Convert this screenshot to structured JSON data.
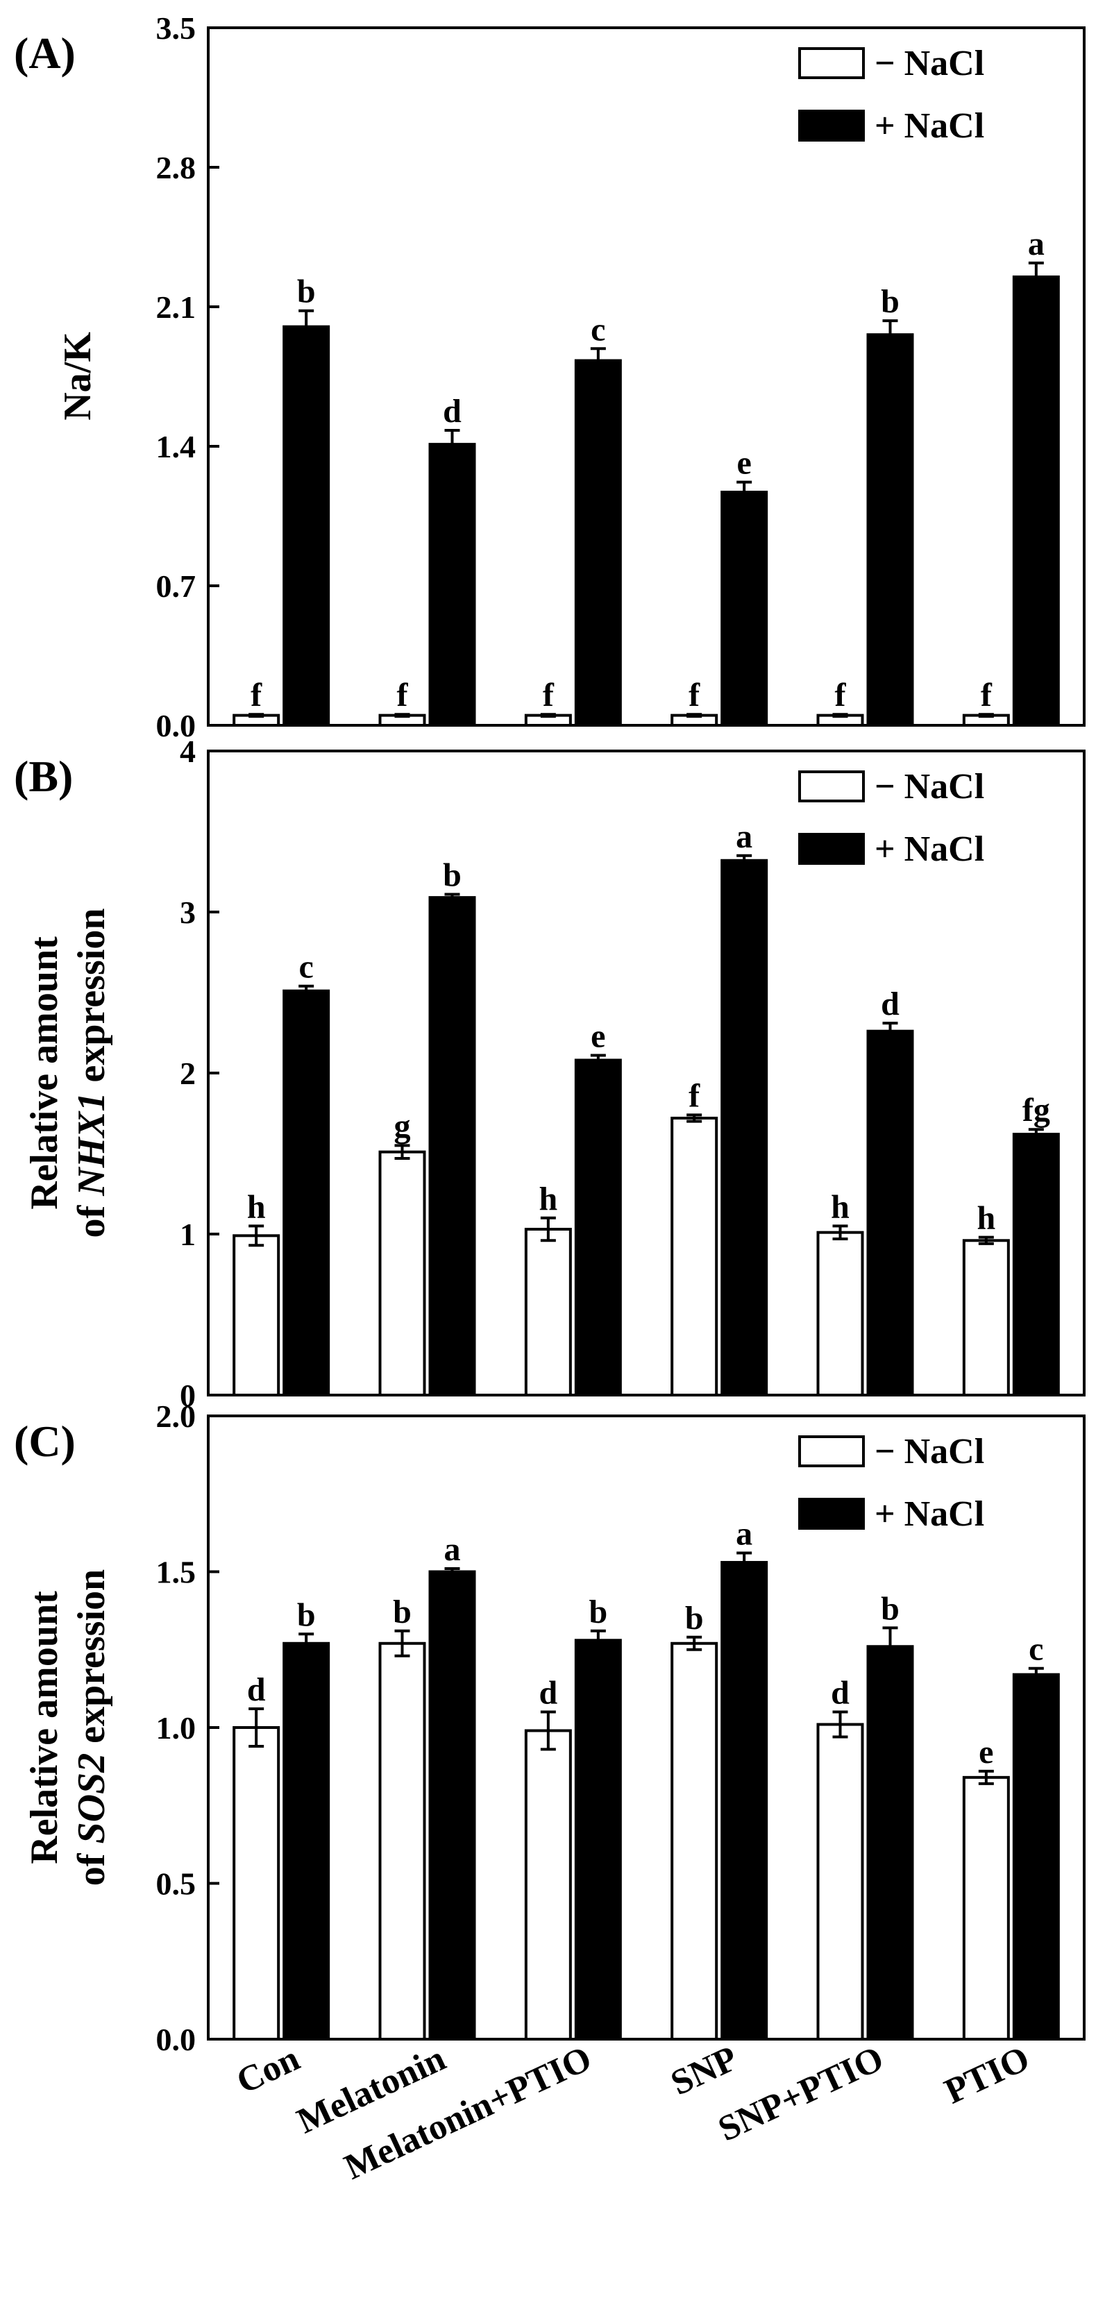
{
  "chart_data": [
    {
      "panel_label": "(A)",
      "type": "bar",
      "ylabel": "Na/K",
      "ylim": [
        0,
        3.5
      ],
      "yticks": [
        "0.0",
        "0.7",
        "1.4",
        "2.1",
        "2.8",
        "3.5"
      ],
      "categories": [
        "Con",
        "Melatonin",
        "Melatonin+PTIO",
        "SNP",
        "SNP+PTIO",
        "PTIO"
      ],
      "series": [
        {
          "name": "− NaCl",
          "values": [
            0.05,
            0.05,
            0.05,
            0.05,
            0.05,
            0.05
          ],
          "errors": [
            0.005,
            0.005,
            0.005,
            0.005,
            0.005,
            0.005
          ],
          "letters": [
            "f",
            "f",
            "f",
            "f",
            "f",
            "f"
          ]
        },
        {
          "name": "+ NaCl",
          "values": [
            2.0,
            1.41,
            1.83,
            1.17,
            1.96,
            2.25
          ],
          "errors": [
            0.08,
            0.07,
            0.06,
            0.05,
            0.07,
            0.07
          ],
          "letters": [
            "b",
            "d",
            "c",
            "e",
            "b",
            "a"
          ]
        }
      ]
    },
    {
      "panel_label": "(B)",
      "type": "bar",
      "ylabel_line1": "Relative amount",
      "ylabel_line2_prefix": "of ",
      "ylabel_gene": "NHX1",
      "ylabel_line2_suffix": " expression",
      "ylim": [
        0,
        4
      ],
      "yticks": [
        "0",
        "1",
        "2",
        "3",
        "4"
      ],
      "categories": [
        "Con",
        "Melatonin",
        "Melatonin+PTIO",
        "SNP",
        "SNP+PTIO",
        "PTIO"
      ],
      "series": [
        {
          "name": "− NaCl",
          "values": [
            0.99,
            1.51,
            1.03,
            1.72,
            1.01,
            0.96
          ],
          "errors": [
            0.06,
            0.04,
            0.07,
            0.02,
            0.04,
            0.02
          ],
          "letters": [
            "h",
            "g",
            "h",
            "f",
            "h",
            "h"
          ]
        },
        {
          "name": "+ NaCl",
          "values": [
            2.51,
            3.09,
            2.08,
            3.32,
            2.26,
            1.62
          ],
          "errors": [
            0.03,
            0.02,
            0.03,
            0.03,
            0.05,
            0.03
          ],
          "letters": [
            "c",
            "b",
            "e",
            "a",
            "d",
            "fg"
          ]
        }
      ]
    },
    {
      "panel_label": "(C)",
      "type": "bar",
      "ylabel_line1": "Relative amount",
      "ylabel_line2_prefix": "of ",
      "ylabel_gene": "SOS2",
      "ylabel_line2_suffix": " expression",
      "ylim": [
        0,
        2.0
      ],
      "yticks": [
        "0.0",
        "0.5",
        "1.0",
        "1.5",
        "2.0"
      ],
      "categories": [
        "Con",
        "Melatonin",
        "Melatonin+PTIO",
        "SNP",
        "SNP+PTIO",
        "PTIO"
      ],
      "series": [
        {
          "name": "− NaCl",
          "values": [
            1.0,
            1.27,
            0.99,
            1.27,
            1.01,
            0.84
          ],
          "errors": [
            0.06,
            0.04,
            0.06,
            0.02,
            0.04,
            0.02
          ],
          "letters": [
            "d",
            "b",
            "d",
            "b",
            "d",
            "e"
          ]
        },
        {
          "name": "+ NaCl",
          "values": [
            1.27,
            1.5,
            1.28,
            1.53,
            1.26,
            1.17
          ],
          "errors": [
            0.03,
            0.01,
            0.03,
            0.03,
            0.06,
            0.02
          ],
          "letters": [
            "b",
            "a",
            "b",
            "a",
            "b",
            "c"
          ]
        }
      ]
    }
  ]
}
